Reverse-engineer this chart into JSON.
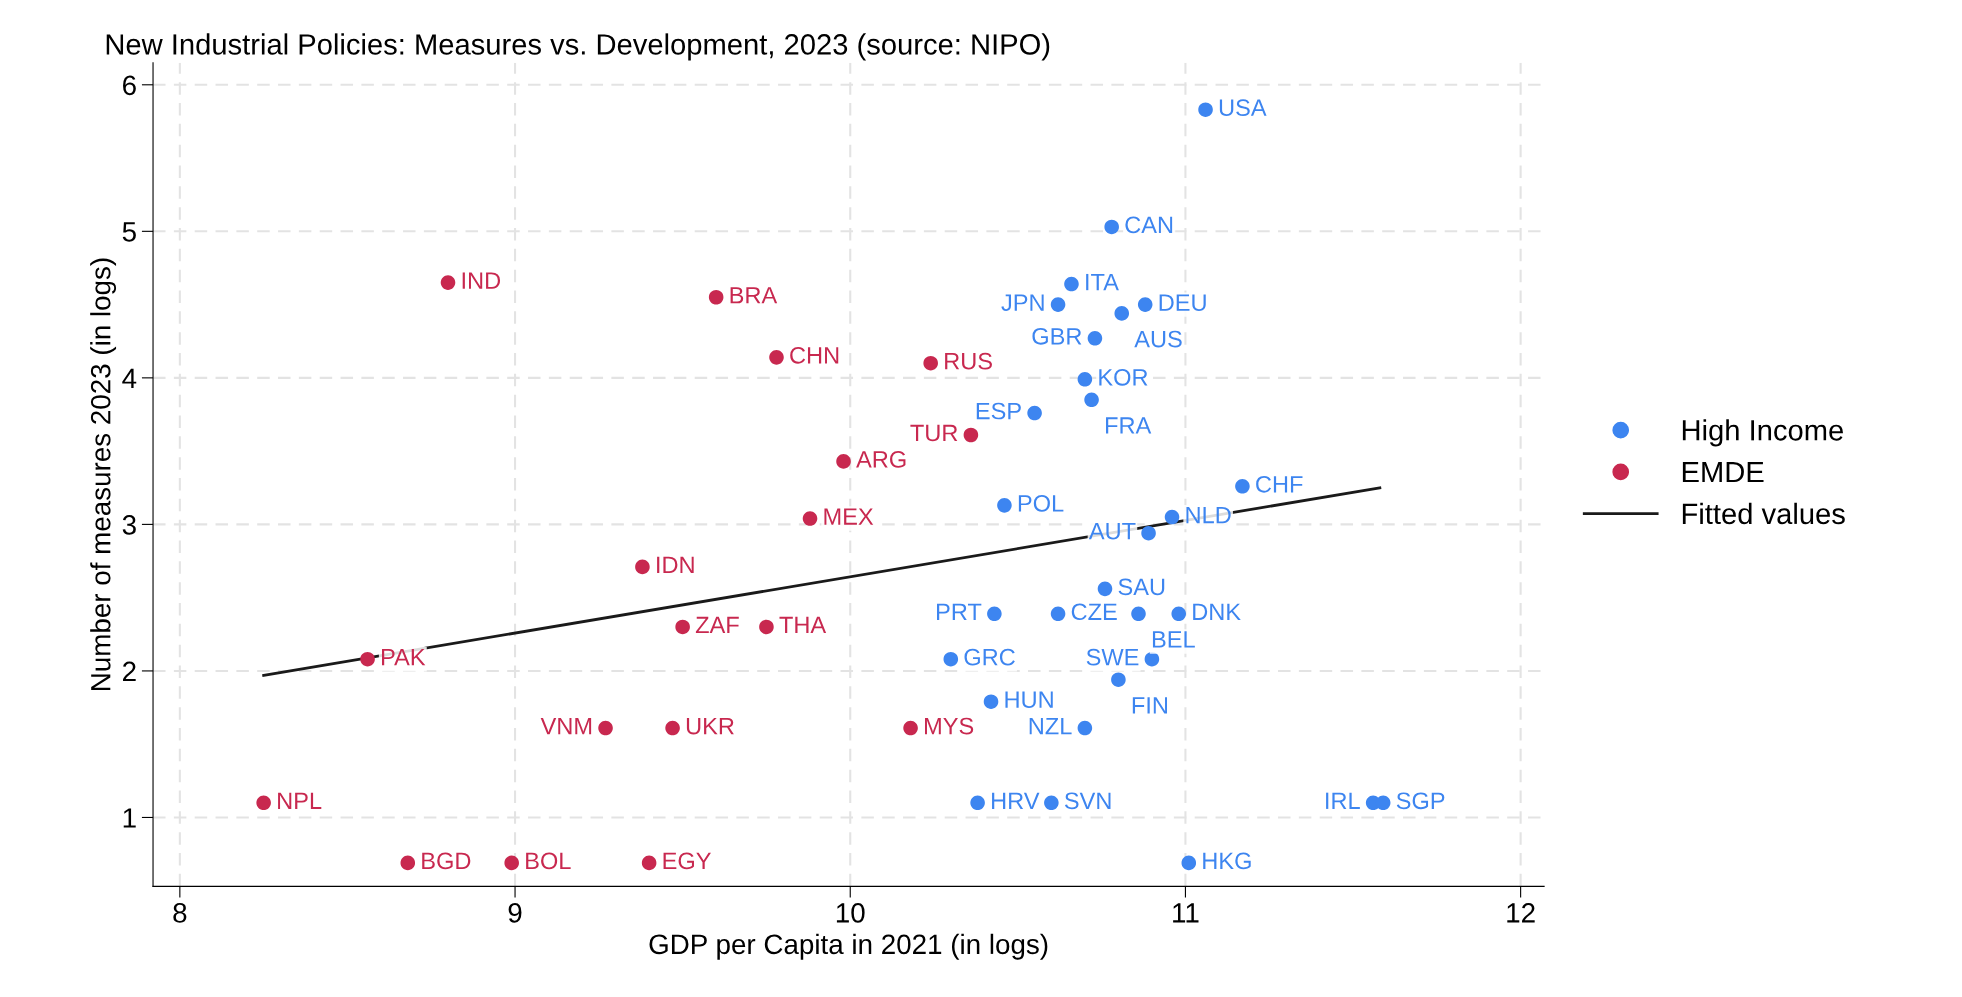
{
  "chart_data": {
    "type": "scatter",
    "title": "New Industrial Policies: Measures vs. Development, 2023 (source: NIPO)",
    "xlabel": "GDP per Capita in 2021 (in logs)",
    "ylabel": "Number of measures 2023 (in logs)",
    "xlim": [
      7.92,
      12.07
    ],
    "xticks": [
      8,
      9,
      10,
      11,
      12
    ],
    "ylim": [
      0.53,
      6.15
    ],
    "yticks": [
      1,
      2,
      3,
      4,
      5,
      6
    ],
    "grid": true,
    "legend": "right",
    "marker": "circle",
    "series": [
      {
        "name": "High Income",
        "color": "#3d85f0",
        "x": [
          11.06,
          10.78,
          10.66,
          10.62,
          10.88,
          10.81,
          10.73,
          10.7,
          10.72,
          10.55,
          10.46,
          11.17,
          10.96,
          10.89,
          10.76,
          10.43,
          10.62,
          10.86,
          10.98,
          10.3,
          10.9,
          10.8,
          10.42,
          10.7,
          10.38,
          10.6,
          11.56,
          11.59,
          11.01
        ],
        "values": [
          5.83,
          5.03,
          4.64,
          4.5,
          4.5,
          4.44,
          4.27,
          3.99,
          3.85,
          3.76,
          3.13,
          3.26,
          3.05,
          2.94,
          2.56,
          2.39,
          2.39,
          2.39,
          2.39,
          2.08,
          2.08,
          1.94,
          1.79,
          1.61,
          1.1,
          1.1,
          1.1,
          1.1,
          0.69
        ]
      },
      {
        "name": "EMDE",
        "color": "#c8284f",
        "x": [
          8.8,
          9.6,
          9.78,
          10.24,
          10.36,
          9.98,
          9.88,
          9.38,
          9.5,
          9.75,
          8.56,
          9.27,
          9.47,
          10.18,
          8.25,
          8.68,
          8.99,
          9.4
        ],
        "values": [
          4.65,
          4.55,
          4.14,
          4.1,
          3.61,
          3.43,
          3.04,
          2.71,
          2.3,
          2.3,
          2.08,
          1.61,
          1.61,
          1.61,
          1.1,
          0.69,
          0.69,
          0.69
        ]
      },
      {
        "name": "Fitted values",
        "type": "line",
        "color": "#1a1a1a",
        "marker": "none",
        "line_style": "solid",
        "x": [
          8.25,
          11.58
        ],
        "values": [
          1.97,
          3.25
        ]
      }
    ],
    "annotations": [
      {
        "text": "USA",
        "x": 11.06,
        "y": 5.83
      },
      {
        "text": "CAN",
        "x": 10.78,
        "y": 5.03
      },
      {
        "text": "ITA",
        "x": 10.66,
        "y": 4.64
      },
      {
        "text": "JPN",
        "x": 10.62,
        "y": 4.5
      },
      {
        "text": "DEU",
        "x": 10.88,
        "y": 4.5
      },
      {
        "text": "AUS",
        "x": 10.81,
        "y": 4.44
      },
      {
        "text": "GBR",
        "x": 10.73,
        "y": 4.27
      },
      {
        "text": "KOR",
        "x": 10.7,
        "y": 3.99
      },
      {
        "text": "FRA",
        "x": 10.72,
        "y": 3.85
      },
      {
        "text": "ESP",
        "x": 10.55,
        "y": 3.76
      },
      {
        "text": "POL",
        "x": 10.46,
        "y": 3.13
      },
      {
        "text": "CHF",
        "x": 11.17,
        "y": 3.26
      },
      {
        "text": "NLD",
        "x": 10.96,
        "y": 3.05
      },
      {
        "text": "AUT",
        "x": 10.89,
        "y": 2.94
      },
      {
        "text": "SAU",
        "x": 10.76,
        "y": 2.56
      },
      {
        "text": "PRT",
        "x": 10.43,
        "y": 2.39
      },
      {
        "text": "CZE",
        "x": 10.62,
        "y": 2.39
      },
      {
        "text": "BEL",
        "x": 10.86,
        "y": 2.39
      },
      {
        "text": "DNK",
        "x": 10.98,
        "y": 2.39
      },
      {
        "text": "GRC",
        "x": 10.3,
        "y": 2.08
      },
      {
        "text": "SWE",
        "x": 10.9,
        "y": 2.08
      },
      {
        "text": "FIN",
        "x": 10.8,
        "y": 1.94
      },
      {
        "text": "HUN",
        "x": 10.42,
        "y": 1.79
      },
      {
        "text": "NZL",
        "x": 10.7,
        "y": 1.61
      },
      {
        "text": "HRV",
        "x": 10.38,
        "y": 1.1
      },
      {
        "text": "SVN",
        "x": 10.6,
        "y": 1.1
      },
      {
        "text": "IRL",
        "x": 11.56,
        "y": 1.1
      },
      {
        "text": "SGP",
        "x": 11.59,
        "y": 1.1
      },
      {
        "text": "HKG",
        "x": 11.01,
        "y": 0.69
      },
      {
        "text": "IND",
        "x": 8.8,
        "y": 4.65
      },
      {
        "text": "BRA",
        "x": 9.6,
        "y": 4.55
      },
      {
        "text": "CHN",
        "x": 9.78,
        "y": 4.14
      },
      {
        "text": "RUS",
        "x": 10.24,
        "y": 4.1
      },
      {
        "text": "TUR",
        "x": 10.36,
        "y": 3.61
      },
      {
        "text": "ARG",
        "x": 9.98,
        "y": 3.43
      },
      {
        "text": "MEX",
        "x": 9.88,
        "y": 3.04
      },
      {
        "text": "IDN",
        "x": 9.38,
        "y": 2.71
      },
      {
        "text": "ZAF",
        "x": 9.5,
        "y": 2.3
      },
      {
        "text": "THA",
        "x": 9.75,
        "y": 2.3
      },
      {
        "text": "PAK",
        "x": 8.56,
        "y": 2.08
      },
      {
        "text": "VNM",
        "x": 9.27,
        "y": 1.61
      },
      {
        "text": "UKR",
        "x": 9.47,
        "y": 1.61
      },
      {
        "text": "MYS",
        "x": 10.18,
        "y": 1.61
      },
      {
        "text": "NPL",
        "x": 8.25,
        "y": 1.1
      },
      {
        "text": "BGD",
        "x": 8.68,
        "y": 0.69
      },
      {
        "text": "BOL",
        "x": 8.99,
        "y": 0.69
      },
      {
        "text": "EGY",
        "x": 9.4,
        "y": 0.69
      }
    ]
  }
}
